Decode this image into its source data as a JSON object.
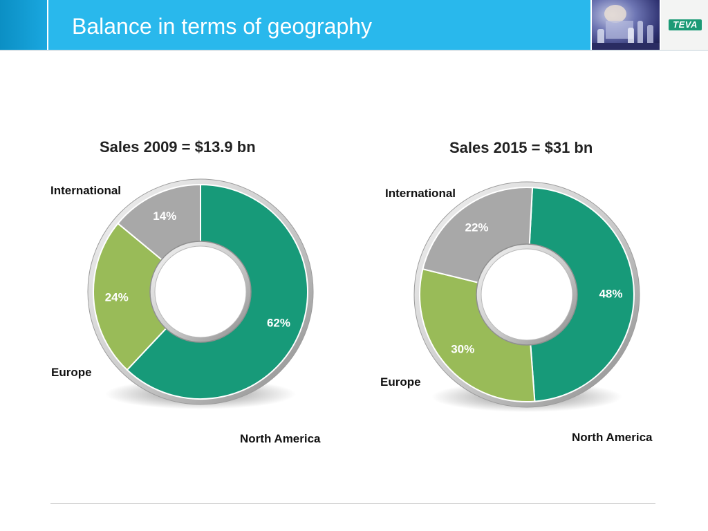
{
  "header": {
    "title": "Balance in terms of geography",
    "logo_text": "TEVA"
  },
  "colors": {
    "north_america": "#179a79",
    "europe": "#99bb58",
    "international": "#a8a8a8",
    "title_bar": "#29b8ec",
    "brand": "#1b9a76"
  },
  "chart_data": [
    {
      "type": "pie",
      "title": "Sales 2009 = $13.9 bn",
      "categories": [
        "North America",
        "Europe",
        "International"
      ],
      "values": [
        62,
        24,
        14
      ],
      "labels": [
        "62%",
        "24%",
        "14%"
      ],
      "unit": "%"
    },
    {
      "type": "pie",
      "title": "Sales 2015 = $31 bn",
      "categories": [
        "North America",
        "Europe",
        "International"
      ],
      "values": [
        48,
        30,
        22
      ],
      "labels": [
        "48%",
        "30%",
        "22%"
      ],
      "unit": "%"
    }
  ]
}
